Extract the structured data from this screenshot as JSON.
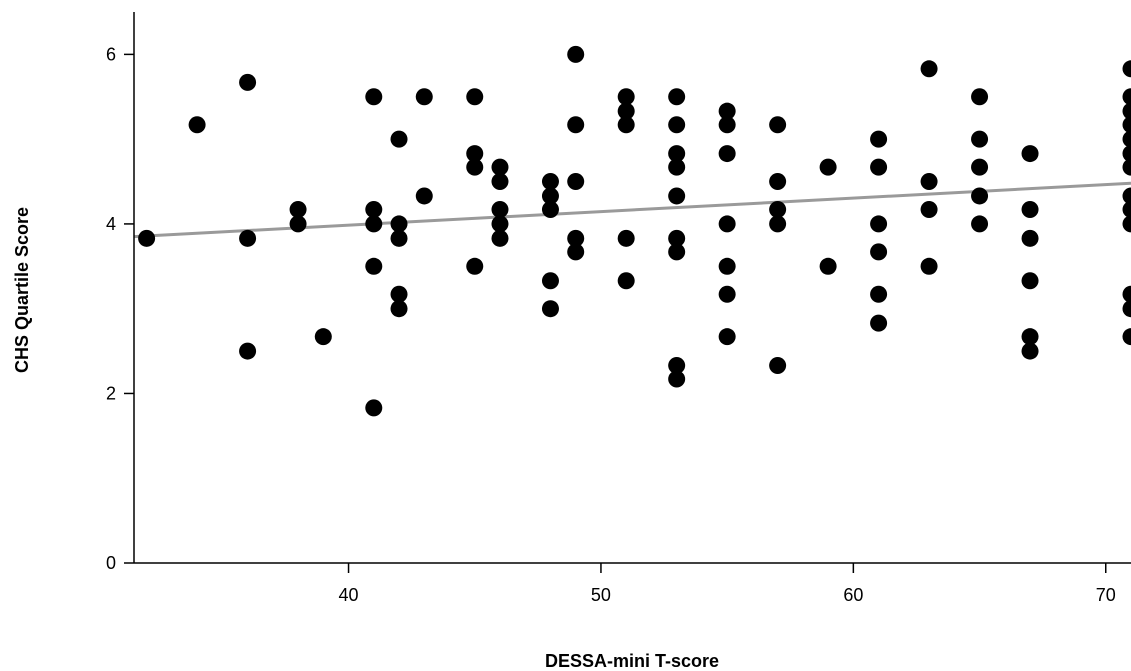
{
  "chart_data": {
    "type": "scatter",
    "xlabel": "DESSA-mini T-score",
    "ylabel": "CHS Quartile Score",
    "xlim": [
      31.5,
      71
    ],
    "ylim": [
      0,
      6.5
    ],
    "x_ticks": [
      40,
      50,
      60,
      70
    ],
    "y_ticks": [
      0,
      2,
      4,
      6
    ],
    "grid": false,
    "trendline": {
      "x": [
        31.5,
        71
      ],
      "y": [
        3.85,
        4.48
      ],
      "color": "#9a9a9a"
    },
    "point_color": "#000000",
    "points": [
      [
        32,
        3.83
      ],
      [
        34,
        5.17
      ],
      [
        36,
        5.67
      ],
      [
        36,
        3.83
      ],
      [
        36,
        2.5
      ],
      [
        38,
        4.17
      ],
      [
        38,
        4.0
      ],
      [
        39,
        2.67
      ],
      [
        41,
        5.5
      ],
      [
        41,
        4.17
      ],
      [
        41,
        4.0
      ],
      [
        41,
        3.5
      ],
      [
        41,
        1.83
      ],
      [
        42,
        5.0
      ],
      [
        42,
        4.0
      ],
      [
        42,
        3.83
      ],
      [
        42,
        3.17
      ],
      [
        42,
        3.0
      ],
      [
        43,
        5.5
      ],
      [
        43,
        4.33
      ],
      [
        45,
        5.5
      ],
      [
        45,
        4.83
      ],
      [
        45,
        4.67
      ],
      [
        45,
        3.5
      ],
      [
        46,
        4.67
      ],
      [
        46,
        4.5
      ],
      [
        46,
        4.17
      ],
      [
        46,
        4.0
      ],
      [
        46,
        3.83
      ],
      [
        48,
        4.5
      ],
      [
        48,
        4.33
      ],
      [
        48,
        4.17
      ],
      [
        48,
        3.33
      ],
      [
        48,
        3.0
      ],
      [
        49,
        6.0
      ],
      [
        49,
        5.17
      ],
      [
        49,
        4.5
      ],
      [
        49,
        3.83
      ],
      [
        49,
        3.67
      ],
      [
        51,
        5.5
      ],
      [
        51,
        5.33
      ],
      [
        51,
        5.17
      ],
      [
        51,
        3.83
      ],
      [
        51,
        3.33
      ],
      [
        53,
        5.5
      ],
      [
        53,
        5.17
      ],
      [
        53,
        4.83
      ],
      [
        53,
        4.67
      ],
      [
        53,
        4.33
      ],
      [
        53,
        3.83
      ],
      [
        53,
        3.67
      ],
      [
        53,
        2.33
      ],
      [
        53,
        2.17
      ],
      [
        55,
        5.33
      ],
      [
        55,
        5.17
      ],
      [
        55,
        4.83
      ],
      [
        55,
        4.0
      ],
      [
        55,
        3.5
      ],
      [
        55,
        3.17
      ],
      [
        55,
        2.67
      ],
      [
        57,
        5.17
      ],
      [
        57,
        4.5
      ],
      [
        57,
        4.17
      ],
      [
        57,
        4.0
      ],
      [
        57,
        2.33
      ],
      [
        59,
        4.67
      ],
      [
        59,
        3.5
      ],
      [
        61,
        5.0
      ],
      [
        61,
        4.67
      ],
      [
        61,
        4.0
      ],
      [
        61,
        3.67
      ],
      [
        61,
        3.17
      ],
      [
        61,
        2.83
      ],
      [
        63,
        5.83
      ],
      [
        63,
        4.5
      ],
      [
        63,
        4.17
      ],
      [
        63,
        3.5
      ],
      [
        65,
        5.5
      ],
      [
        65,
        5.0
      ],
      [
        65,
        4.67
      ],
      [
        65,
        4.33
      ],
      [
        65,
        4.0
      ],
      [
        67,
        4.83
      ],
      [
        67,
        4.17
      ],
      [
        67,
        3.83
      ],
      [
        67,
        3.33
      ],
      [
        67,
        2.67
      ],
      [
        67,
        2.5
      ],
      [
        71,
        5.83
      ],
      [
        71,
        5.5
      ],
      [
        71,
        5.33
      ],
      [
        71,
        5.17
      ],
      [
        71,
        5.0
      ],
      [
        71,
        4.83
      ],
      [
        71,
        4.67
      ],
      [
        71,
        4.33
      ],
      [
        71,
        4.17
      ],
      [
        71,
        4.0
      ],
      [
        71,
        3.17
      ],
      [
        71,
        3.0
      ],
      [
        71,
        2.67
      ]
    ]
  }
}
